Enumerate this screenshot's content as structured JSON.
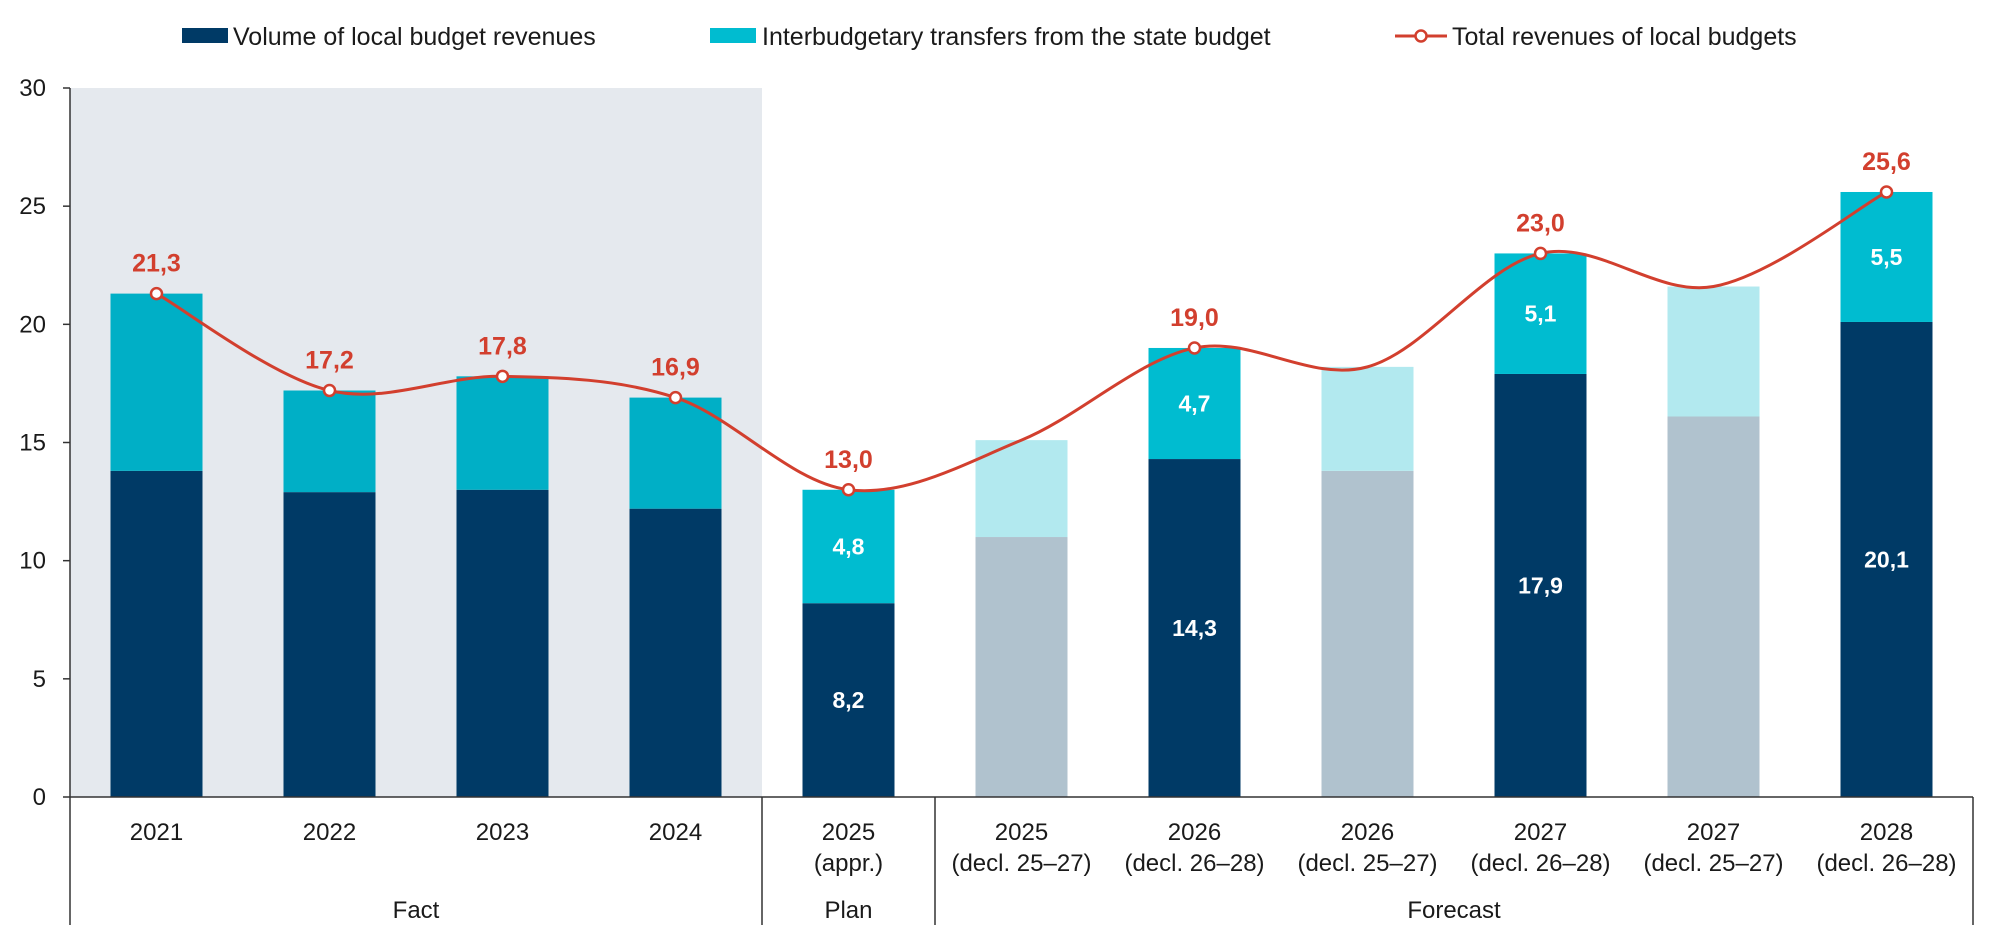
{
  "chart_data": {
    "type": "bar",
    "stacked": true,
    "ylim": [
      0,
      30
    ],
    "yticks": [
      0,
      5,
      10,
      15,
      20,
      25,
      30
    ],
    "categories": [
      {
        "line1": "2021",
        "line2": "",
        "group": "Fact",
        "style": "fact",
        "local": 13.8,
        "transfers": 7.5,
        "total": 21.3,
        "show_bar_labels": false,
        "show_total": true
      },
      {
        "line1": "2022",
        "line2": "",
        "group": "Fact",
        "style": "fact",
        "local": 12.9,
        "transfers": 4.3,
        "total": 17.2,
        "show_bar_labels": false,
        "show_total": true
      },
      {
        "line1": "2023",
        "line2": "",
        "group": "Fact",
        "style": "fact",
        "local": 13.0,
        "transfers": 4.8,
        "total": 17.8,
        "show_bar_labels": false,
        "show_total": true
      },
      {
        "line1": "2024",
        "line2": "",
        "group": "Fact",
        "style": "fact",
        "local": 12.2,
        "transfers": 4.7,
        "total": 16.9,
        "show_bar_labels": false,
        "show_total": true
      },
      {
        "line1": "2025",
        "line2": "(appr.)",
        "group": "Plan",
        "style": "main",
        "local": 8.2,
        "transfers": 4.8,
        "total": 13.0,
        "show_bar_labels": true,
        "show_total": true
      },
      {
        "line1": "2025",
        "line2": "(decl. 25–27)",
        "group": "Forecast",
        "style": "faded",
        "local": 11.0,
        "transfers": 4.1,
        "total": 15.1,
        "show_bar_labels": false,
        "show_total": false
      },
      {
        "line1": "2026",
        "line2": "(decl. 26–28)",
        "group": "Forecast",
        "style": "main",
        "local": 14.3,
        "transfers": 4.7,
        "total": 19.0,
        "show_bar_labels": true,
        "show_total": true
      },
      {
        "line1": "2026",
        "line2": "(decl. 25–27)",
        "group": "Forecast",
        "style": "faded",
        "local": 13.8,
        "transfers": 4.4,
        "total": 18.2,
        "show_bar_labels": false,
        "show_total": false
      },
      {
        "line1": "2027",
        "line2": "(decl. 26–28)",
        "group": "Forecast",
        "style": "main",
        "local": 17.9,
        "transfers": 5.1,
        "total": 23.0,
        "show_bar_labels": true,
        "show_total": true
      },
      {
        "line1": "2027",
        "line2": "(decl. 25–27)",
        "group": "Forecast",
        "style": "faded",
        "local": 16.1,
        "transfers": 5.5,
        "total": 21.6,
        "show_bar_labels": false,
        "show_total": false
      },
      {
        "line1": "2028",
        "line2": "(decl. 26–28)",
        "group": "Forecast",
        "style": "main",
        "local": 20.1,
        "transfers": 5.5,
        "total": 25.6,
        "show_bar_labels": true,
        "show_total": true
      }
    ],
    "groups": [
      {
        "label": "Fact",
        "first": 0,
        "last": 3,
        "shaded": true
      },
      {
        "label": "Plan",
        "first": 4,
        "last": 4,
        "shaded": false
      },
      {
        "label": "Forecast",
        "first": 5,
        "last": 10,
        "shaded": false
      }
    ],
    "legend": {
      "position": "top",
      "items": [
        {
          "label": "Volume of local budget revenues",
          "type": "box",
          "color": "#003a66"
        },
        {
          "label": "Interbudgetary transfers from the state budget",
          "type": "box",
          "color": "#00bcd0"
        },
        {
          "label": "Total revenues of local budgets",
          "type": "line",
          "color": "#d23f2e"
        }
      ]
    },
    "colors": {
      "local": "#003a66",
      "transfers_fact": "#00afc6",
      "transfers": "#00bcd0",
      "local_faded": "#b0c2ce",
      "transfers_faded": "#b2e9ef",
      "total_line": "#d23f2e",
      "fact_shading": "#e5e9ee"
    }
  }
}
